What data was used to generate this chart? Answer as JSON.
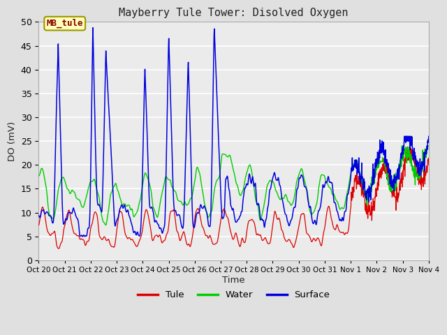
{
  "title": "Mayberry Tule Tower: Disolved Oxygen",
  "ylabel": "DO (mV)",
  "xlabel": "Time",
  "ylim": [
    0,
    50
  ],
  "yticks": [
    0,
    5,
    10,
    15,
    20,
    25,
    30,
    35,
    40,
    45,
    50
  ],
  "xtick_labels": [
    "Oct 20",
    "Oct 21",
    "Oct 22",
    "Oct 23",
    "Oct 24",
    "Oct 25",
    "Oct 26",
    "Oct 27",
    "Oct 28",
    "Oct 29",
    "Oct 30",
    "Oct 31",
    "Nov 1",
    "Nov 2",
    "Nov 3",
    "Nov 4"
  ],
  "legend_labels": [
    "Tule",
    "Water",
    "Surface"
  ],
  "legend_colors": [
    "#dd0000",
    "#00cc00",
    "#0000dd"
  ],
  "bg_color": "#e0e0e0",
  "plot_bg_color": "#ebebeb",
  "grid_color": "#ffffff",
  "annotation_text": "MB_tule",
  "annotation_box_color": "#ffffbb",
  "annotation_border_color": "#999900",
  "annotation_text_color": "#880000",
  "figsize": [
    6.4,
    4.8
  ],
  "dpi": 100
}
